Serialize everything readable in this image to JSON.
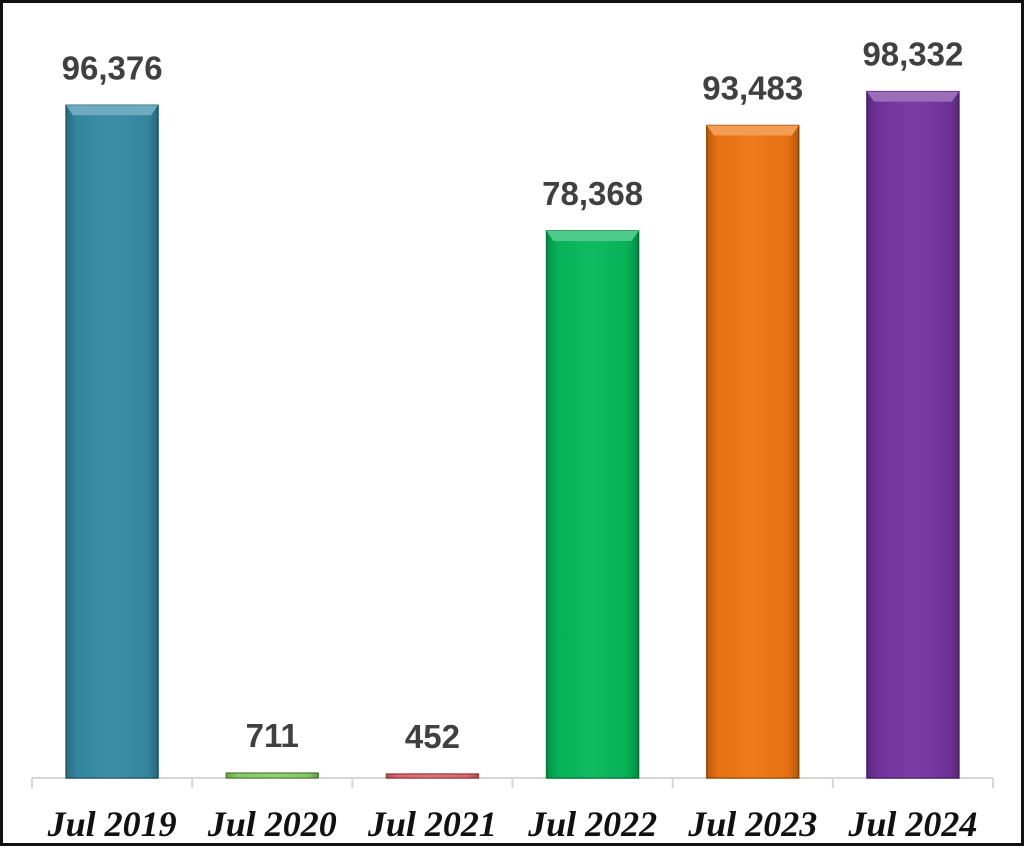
{
  "chart_data": {
    "type": "bar",
    "title": "",
    "xlabel": "",
    "ylabel": "",
    "categories": [
      "Jul 2019",
      "Jul 2020",
      "Jul 2021",
      "Jul 2022",
      "Jul 2023",
      "Jul 2024"
    ],
    "values": [
      96376,
      711,
      452,
      78368,
      93483,
      98332
    ],
    "value_labels": [
      "96,376",
      "711",
      "452",
      "78,368",
      "93,483",
      "98,332"
    ],
    "ylim": [
      0,
      100000
    ],
    "grid": false,
    "legend": "none",
    "colors": [
      "#368aa5",
      "#8ed06a",
      "#e66b73",
      "#07b85a",
      "#ef7512",
      "#7634a1"
    ]
  }
}
